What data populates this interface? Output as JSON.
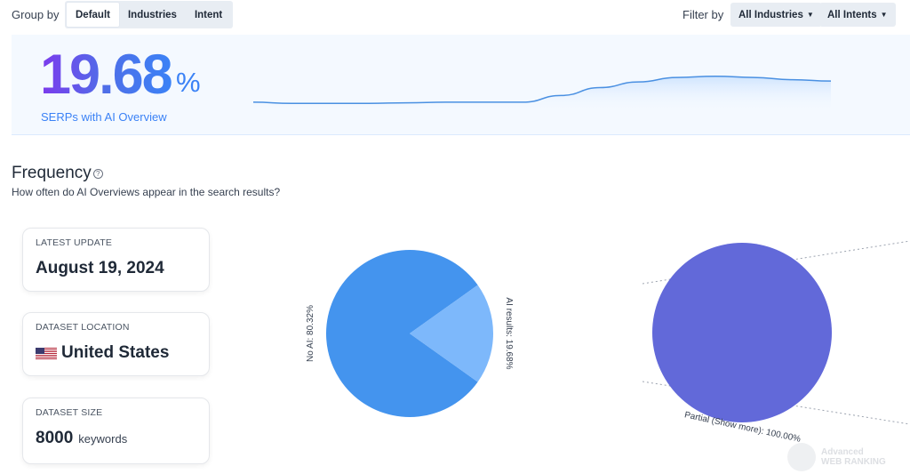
{
  "topbar": {
    "group_by_label": "Group by",
    "group_options": [
      {
        "label": "Default",
        "active": true
      },
      {
        "label": "Industries",
        "active": false
      },
      {
        "label": "Intent",
        "active": false
      }
    ],
    "filter_by_label": "Filter by",
    "industries_dropdown": "All Industries",
    "intents_dropdown": "All Intents"
  },
  "hero": {
    "value": "19.68",
    "unit": "%",
    "subtitle": "SERPs with AI Overview"
  },
  "frequency": {
    "title": "Frequency",
    "subtitle": "How often do AI Overviews appear in the search results?"
  },
  "cards": [
    {
      "label": "LATEST UPDATE",
      "value": "August 19, 2024",
      "unit": ""
    },
    {
      "label": "DATASET LOCATION",
      "value": "United States",
      "unit": "",
      "icon": "us-flag-icon"
    },
    {
      "label": "DATASET SIZE",
      "value": "8000",
      "unit": "keywords"
    }
  ],
  "colors": {
    "accent_blue": "#3b82f6",
    "pie_no_ai": "#4494ee",
    "pie_ai": "#7db8fb",
    "pie_partial": "#6269d9"
  },
  "chart_data": [
    {
      "type": "line",
      "title": "",
      "series": [
        {
          "values": [
            17.8,
            17.7,
            17.7,
            17.7,
            17.75,
            17.8,
            17.8,
            17.8,
            18.4,
            19.1,
            19.6,
            20.0,
            20.1,
            20.0,
            19.8,
            19.68
          ]
        }
      ],
      "grid": false
    },
    {
      "type": "pie",
      "slices": [
        {
          "label": "No AI: 80.32%",
          "value": 80.32
        },
        {
          "label": "AI results: 19.68%",
          "value": 19.68
        }
      ]
    },
    {
      "type": "pie",
      "slices": [
        {
          "label": "Partial (Show more): 100.00%",
          "value": 100.0
        }
      ]
    }
  ],
  "watermark": {
    "line1": "Advanced",
    "line2": "WEB RANKING"
  }
}
